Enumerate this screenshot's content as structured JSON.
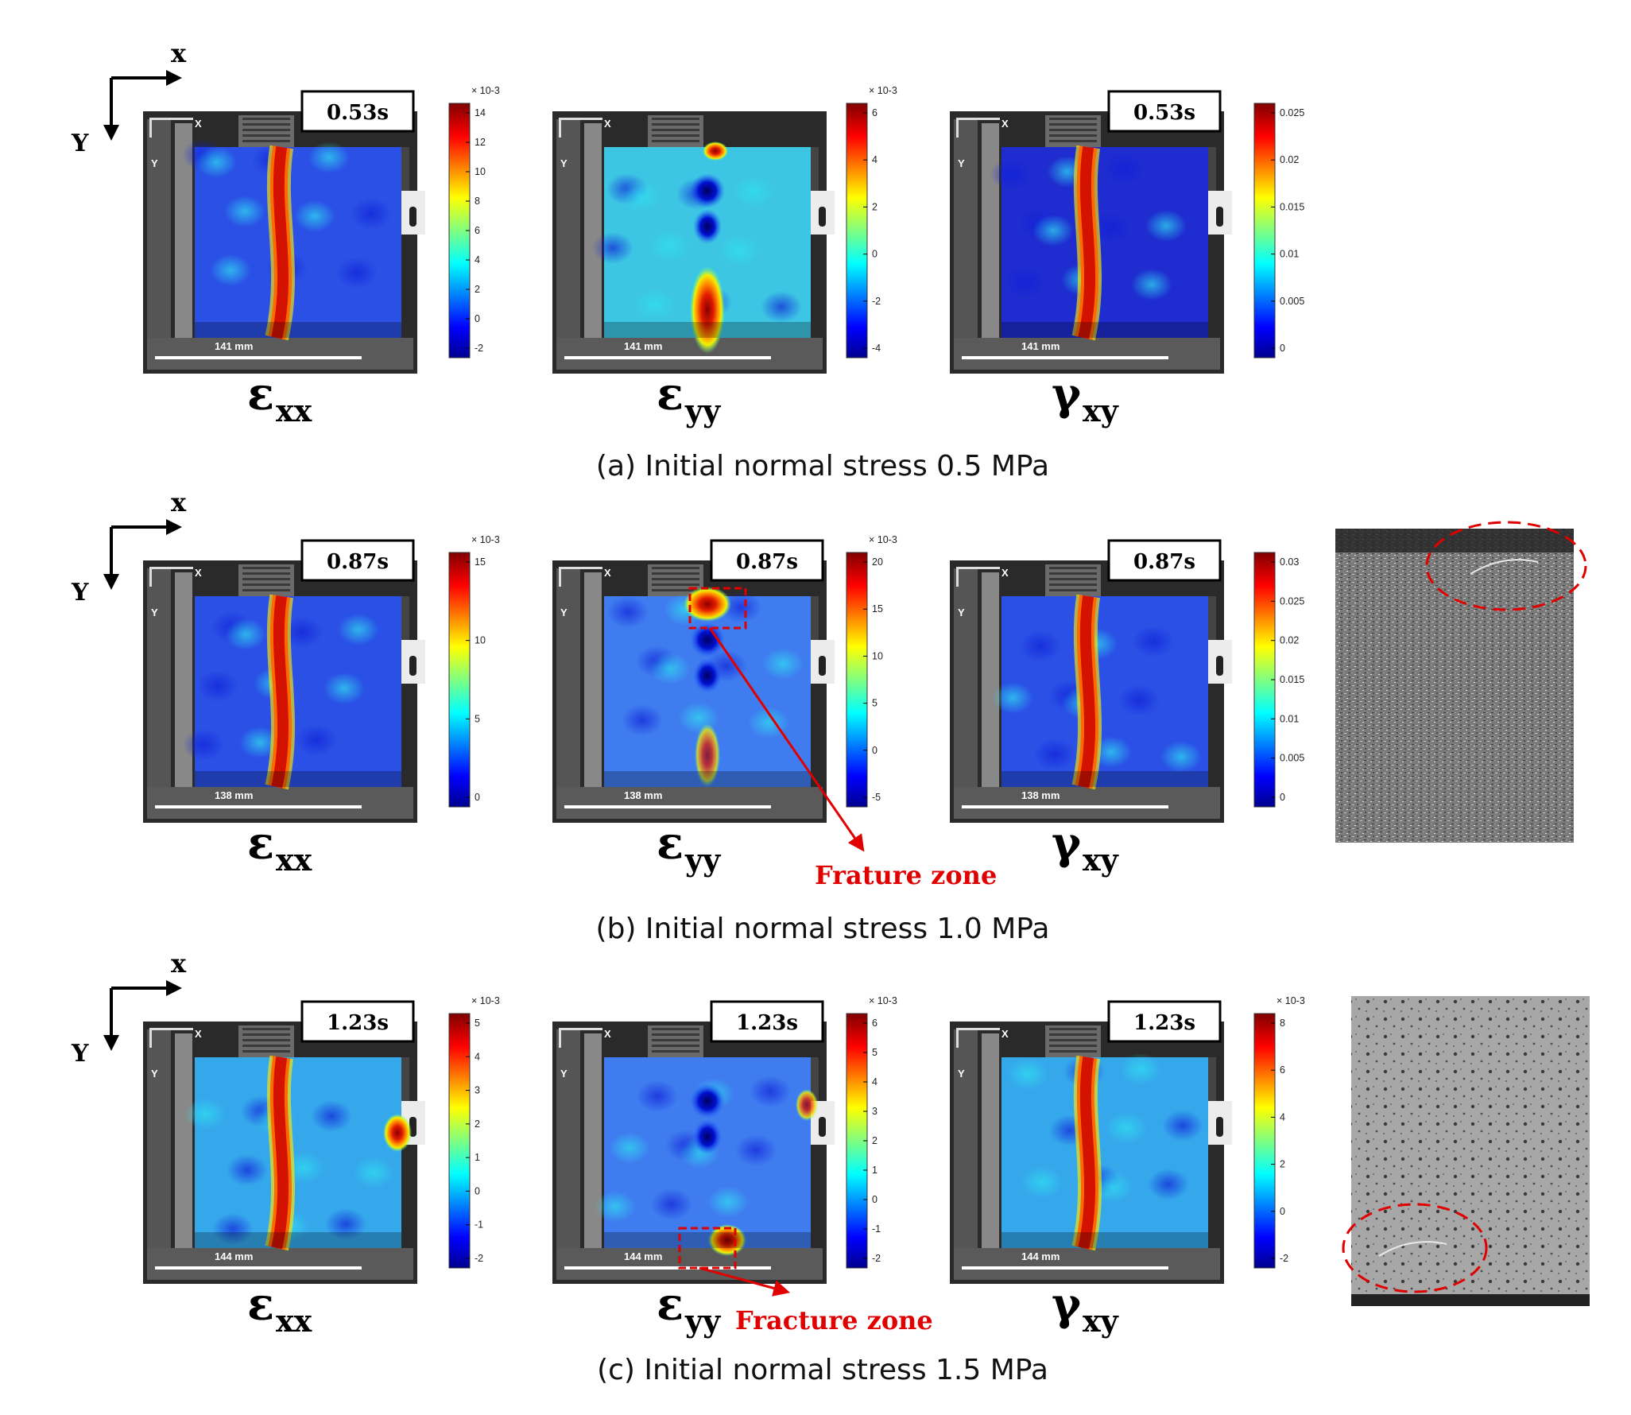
{
  "figure": {
    "rows": [
      {
        "id": "a",
        "caption": "(a) Initial normal stress 0.5 MPa",
        "axis": {
          "x": "x",
          "y": "Y"
        },
        "panels": [
          {
            "key": "exx",
            "label_main": "ε",
            "label_sub": "xx",
            "time": "0.53s",
            "scale": "141 mm",
            "cb_exp": "× 10-3",
            "cb_ticks": [
              "14",
              "12",
              "10",
              "8",
              "6",
              "4",
              "2",
              "0",
              "-2"
            ],
            "band": "red-band",
            "fracture": false
          },
          {
            "key": "eyy",
            "label_main": "ε",
            "label_sub": "yy",
            "time": "",
            "scale": "141 mm",
            "cb_exp": "× 10-3",
            "cb_ticks": [
              "6",
              "4",
              "2",
              "0",
              "-2",
              "-4"
            ],
            "band": "blobs",
            "fracture": false
          },
          {
            "key": "gxy",
            "label_main": "γ",
            "label_sub": "xy",
            "time": "0.53s",
            "scale": "141 mm",
            "cb_exp": "",
            "cb_ticks": [
              "0.025",
              "0.02",
              "0.015",
              "0.01",
              "0.005",
              "0"
            ],
            "band": "red-band-deep",
            "fracture": false
          }
        ],
        "photo": null
      },
      {
        "id": "b",
        "caption": "(b) Initial normal stress 1.0 MPa",
        "axis": {
          "x": "x",
          "y": "Y"
        },
        "panels": [
          {
            "key": "exx",
            "label_main": "ε",
            "label_sub": "xx",
            "time": "0.87s",
            "scale": "138 mm",
            "cb_exp": "× 10-3",
            "cb_ticks": [
              "15",
              "10",
              "5",
              "0"
            ],
            "band": "red-band",
            "fracture": false
          },
          {
            "key": "eyy",
            "label_main": "ε",
            "label_sub": "yy",
            "time": "0.87s",
            "scale": "138 mm",
            "cb_exp": "× 10-3",
            "cb_ticks": [
              "20",
              "15",
              "10",
              "5",
              "0",
              "-5"
            ],
            "band": "blobs-top",
            "fracture": true,
            "fracture_label": "Frature zone"
          },
          {
            "key": "gxy",
            "label_main": "γ",
            "label_sub": "xy",
            "time": "0.87s",
            "scale": "138 mm",
            "cb_exp": "",
            "cb_ticks": [
              "0.03",
              "0.025",
              "0.02",
              "0.015",
              "0.01",
              "0.005",
              "0"
            ],
            "band": "red-band",
            "fracture": false
          }
        ],
        "photo": {
          "crack_pos": "top-right"
        }
      },
      {
        "id": "c",
        "caption": "(c) Initial normal stress 1.5 MPa",
        "axis": {
          "x": "x",
          "y": "Y"
        },
        "panels": [
          {
            "key": "exx",
            "label_main": "ε",
            "label_sub": "xx",
            "time": "1.23s",
            "scale": "144 mm",
            "cb_exp": "× 10-3",
            "cb_ticks": [
              "5",
              "4",
              "3",
              "2",
              "1",
              "0",
              "-1",
              "-2"
            ],
            "band": "red-band-cyan",
            "fracture": false
          },
          {
            "key": "eyy",
            "label_main": "ε",
            "label_sub": "yy",
            "time": "1.23s",
            "scale": "144 mm",
            "cb_exp": "× 10-3",
            "cb_ticks": [
              "6",
              "5",
              "4",
              "3",
              "2",
              "1",
              "0",
              "-1",
              "-2"
            ],
            "band": "blobs-bottom",
            "fracture": true,
            "fracture_label": "Fracture zone"
          },
          {
            "key": "gxy",
            "label_main": "γ",
            "label_sub": "xy",
            "time": "1.23s",
            "scale": "144 mm",
            "cb_exp": "× 10-3",
            "cb_ticks": [
              "8",
              "6",
              "4",
              "2",
              "0",
              "-2"
            ],
            "band": "red-band-cyan",
            "fracture": false
          }
        ],
        "photo": {
          "crack_pos": "bottom-left"
        }
      }
    ],
    "corner_x": "X",
    "corner_y": "Y"
  }
}
